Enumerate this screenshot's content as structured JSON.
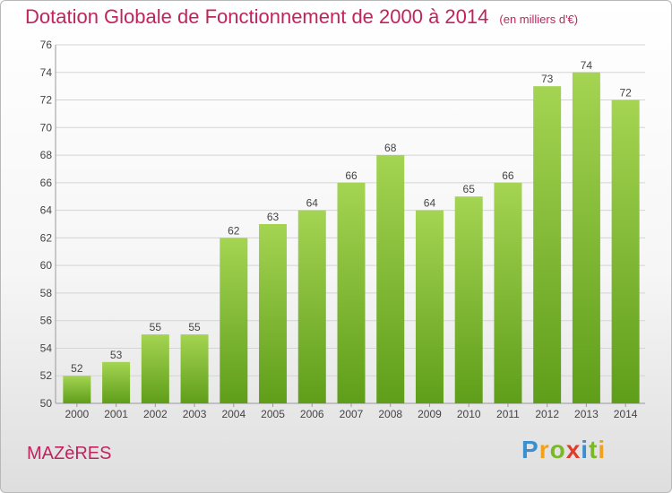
{
  "chart_data": {
    "type": "bar",
    "title": "Dotation Globale de Fonctionnement de 2000 à 2014",
    "subtitle": "(en milliers d'€)",
    "categories": [
      "2000",
      "2001",
      "2002",
      "2003",
      "2004",
      "2005",
      "2006",
      "2007",
      "2008",
      "2009",
      "2010",
      "2011",
      "2012",
      "2013",
      "2014"
    ],
    "values": [
      52,
      53,
      55,
      55,
      62,
      63,
      64,
      66,
      68,
      64,
      65,
      66,
      73,
      74,
      72
    ],
    "ylim": [
      50,
      76
    ],
    "yticks": [
      50,
      52,
      54,
      56,
      58,
      60,
      62,
      64,
      66,
      68,
      70,
      72,
      74,
      76
    ],
    "grid": true,
    "bar_color": "#7cb82f"
  },
  "commune": "MAZèRES",
  "logo": {
    "letters": [
      "P",
      "r",
      "o",
      "x",
      "i",
      "t",
      "i"
    ],
    "colors": [
      "#3a8fd0",
      "#f2a21a",
      "#7ab828",
      "#e23b2a",
      "#3a8fd0",
      "#7ab828",
      "#f2a21a"
    ]
  }
}
